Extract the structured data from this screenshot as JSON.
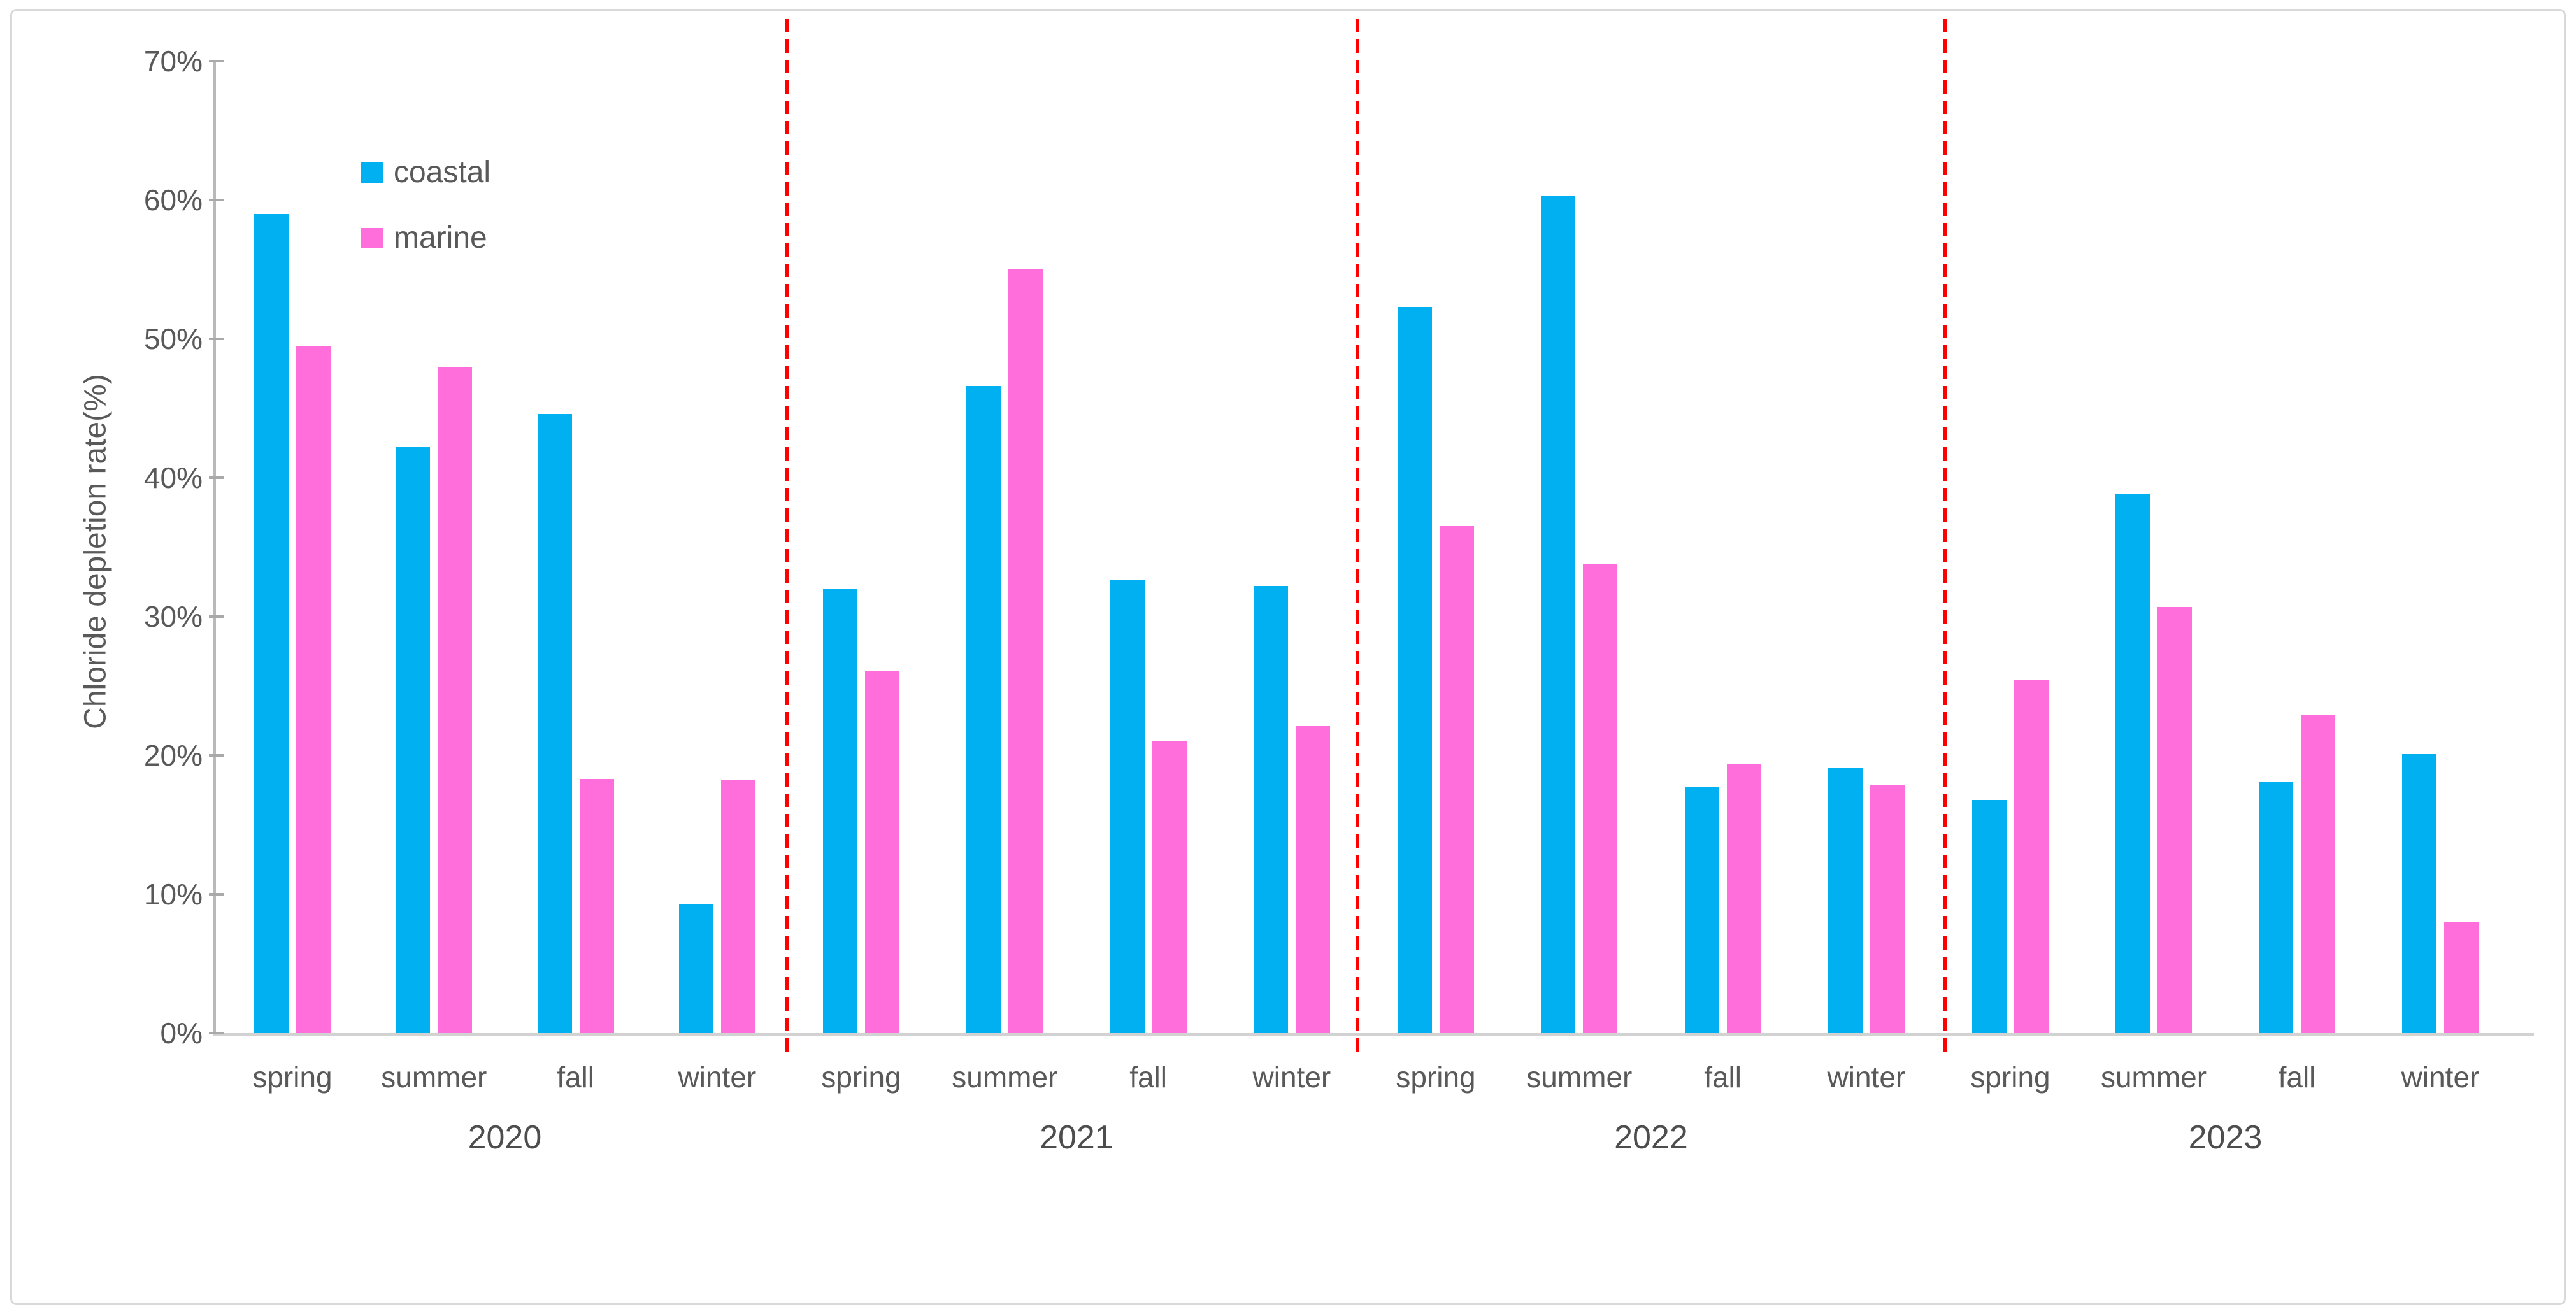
{
  "figure": {
    "background": "#ffffff",
    "border_color": "#d9d9d9"
  },
  "colors": {
    "coastal": "#00B0F0",
    "marine": "#FF6EDB",
    "separator_red": "#FF0000",
    "axis_text": "#595959"
  },
  "legend": {
    "items": [
      {
        "label": "coastal",
        "color": "#00B0F0"
      },
      {
        "label": "marine",
        "color": "#FF6EDB"
      }
    ]
  },
  "chart_data": {
    "type": "bar",
    "title": "",
    "xlabel": "",
    "ylabel": "Chloride depletion rate(%)",
    "ylim": [
      0,
      70
    ],
    "ytick_step": 10,
    "ytick_labels": [
      "0%",
      "10%",
      "20%",
      "30%",
      "40%",
      "50%",
      "60%",
      "70%"
    ],
    "grid": false,
    "legend_position": "inside-top-left",
    "series_names": [
      "coastal",
      "marine"
    ],
    "season_categories": [
      "spring",
      "summer",
      "fall",
      "winter"
    ],
    "groups": [
      {
        "year": "2020",
        "seasons": [
          "spring",
          "summer",
          "fall",
          "winter"
        ],
        "series": [
          {
            "name": "coastal",
            "values": [
              59.0,
              42.2,
              44.6,
              9.3
            ]
          },
          {
            "name": "marine",
            "values": [
              49.5,
              48.0,
              18.3,
              18.2
            ]
          }
        ]
      },
      {
        "year": "2021",
        "seasons": [
          "spring",
          "summer",
          "fall",
          "winter"
        ],
        "series": [
          {
            "name": "coastal",
            "values": [
              32.0,
              46.6,
              32.6,
              32.2
            ]
          },
          {
            "name": "marine",
            "values": [
              26.1,
              55.0,
              21.0,
              22.1
            ]
          }
        ]
      },
      {
        "year": "2022",
        "seasons": [
          "spring",
          "summer",
          "fall",
          "winter"
        ],
        "series": [
          {
            "name": "coastal",
            "values": [
              52.3,
              60.3,
              17.7,
              19.1
            ]
          },
          {
            "name": "marine",
            "values": [
              36.5,
              33.8,
              19.4,
              17.9
            ]
          }
        ]
      },
      {
        "year": "2023",
        "seasons": [
          "spring",
          "summer",
          "fall",
          "winter"
        ],
        "series": [
          {
            "name": "coastal",
            "values": [
              16.8,
              38.8,
              18.1,
              20.1
            ]
          },
          {
            "name": "marine",
            "values": [
              25.4,
              30.7,
              22.9,
              8.0
            ]
          }
        ]
      }
    ],
    "year_separators": {
      "style": "dashed",
      "color": "#FF0000",
      "count": 3,
      "description": "vertical red dashed lines between year groups"
    }
  }
}
